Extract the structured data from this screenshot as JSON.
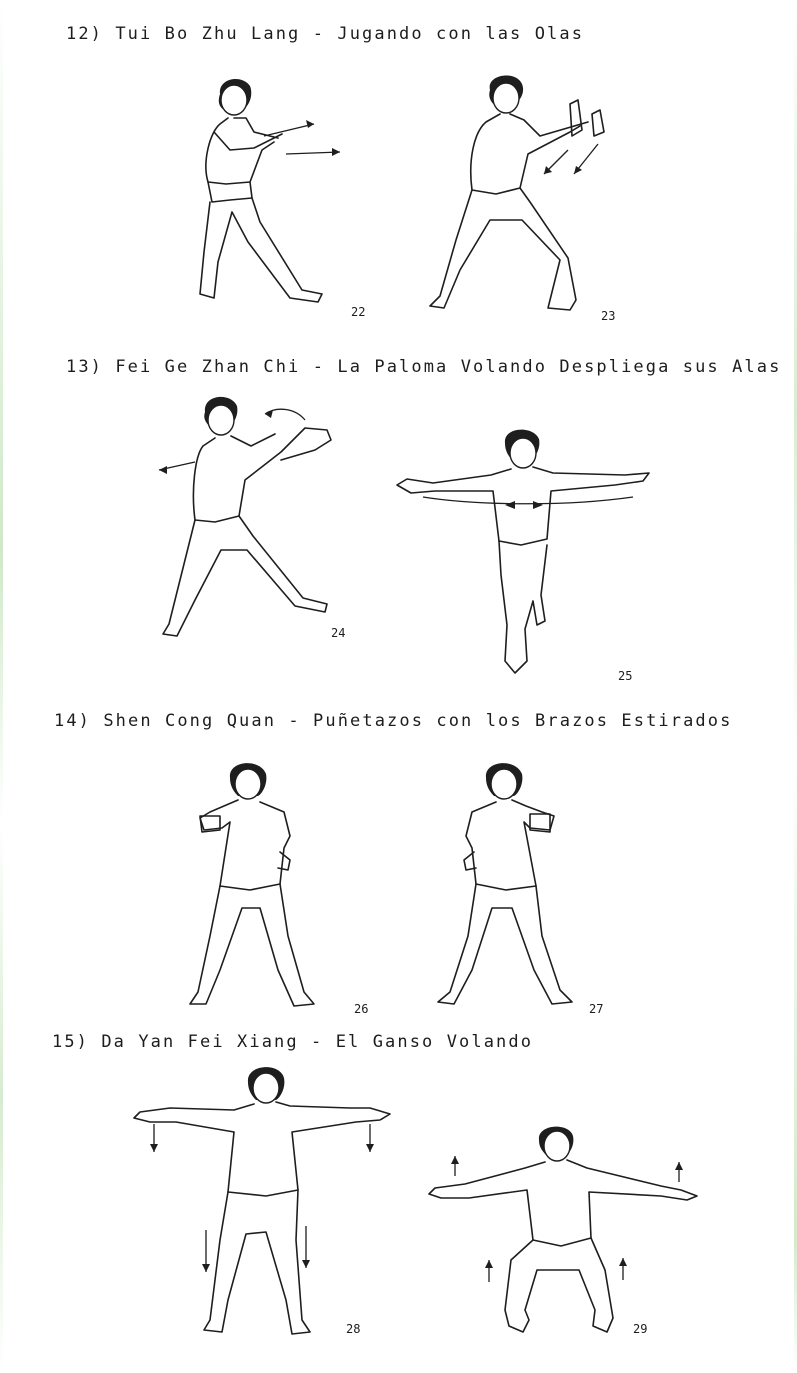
{
  "sections": [
    {
      "heading": "12) Tui Bo Zhu Lang - Jugando con las Olas",
      "figures": [
        "22",
        "23"
      ]
    },
    {
      "heading": "13) Fei Ge Zhan Chi - La Paloma Volando Despliega sus Alas",
      "figures": [
        "24",
        "25"
      ]
    },
    {
      "heading": "14) Shen Cong Quan - Puñetazos con los Brazos Estirados",
      "figures": [
        "26",
        "27"
      ]
    },
    {
      "heading": "15) Da Yan Fei Xiang - El Ganso Volando",
      "figures": [
        "28",
        "29"
      ]
    }
  ]
}
